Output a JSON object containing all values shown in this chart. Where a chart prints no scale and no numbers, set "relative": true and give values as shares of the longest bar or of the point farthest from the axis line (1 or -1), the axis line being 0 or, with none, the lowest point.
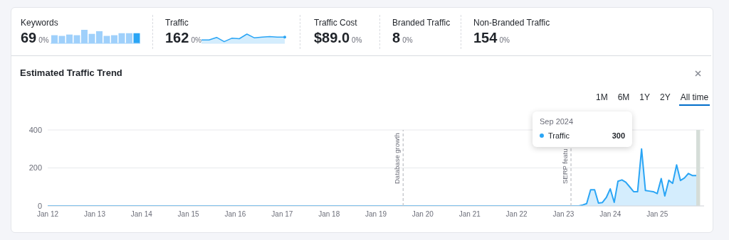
{
  "chart_data": [
    {
      "type": "other",
      "annotations": [
        "Keywords",
        "69",
        "0%",
        "Traffic",
        "162",
        "0%",
        "Traffic Cost",
        "$89.0",
        "0%",
        "Branded Traffic",
        "8",
        "0%",
        "Non-Branded Traffic",
        "154",
        "0%"
      ]
    },
    {
      "type": "bar",
      "relative": true,
      "categories": [
        null,
        null,
        null,
        null,
        null,
        null,
        null,
        null,
        null,
        null,
        null,
        null
      ],
      "values": [
        0.6,
        0.55,
        0.65,
        0.6,
        1.0,
        0.7,
        0.9,
        0.55,
        0.6,
        0.75,
        0.75,
        0.75
      ],
      "colors": [
        "#9fd0fb",
        "#9fd0fb",
        "#9fd0fb",
        "#9fd0fb",
        "#9fd0fb",
        "#9fd0fb",
        "#9fd0fb",
        "#9fd0fb",
        "#9fd0fb",
        "#9fd0fb",
        "#9fd0fb",
        "#2aa5f5"
      ]
    },
    {
      "type": "area",
      "relative": true,
      "categories": [
        null,
        null,
        null,
        null,
        null,
        null,
        null,
        null,
        null,
        null,
        null,
        null
      ],
      "values": [
        0.36,
        0.36,
        0.64,
        0.18,
        0.55,
        0.5,
        1,
        0.59,
        0.68,
        0.73,
        0.68,
        0.68
      ],
      "color": "#2aa5f5"
    },
    {
      "type": "area",
      "title": "Estimated Traffic Trend",
      "x": [
        "2012-01",
        "2023-05",
        "2023-06",
        "2023-07",
        "2023-08",
        "2023-09",
        "2023-10",
        "2023-11",
        "2023-12",
        "2024-01",
        "2024-02",
        "2024-03",
        "2024-04",
        "2024-05",
        "2024-06",
        "2024-07",
        "2024-08",
        "2024-09",
        "2024-10",
        "2024-11",
        "2024-12",
        "2025-01",
        "2025-02",
        "2025-03",
        "2025-04",
        "2025-05",
        "2025-06",
        "2025-07",
        "2025-08",
        "2025-09",
        "2025-10",
        "2025-11"
      ],
      "series": [
        {
          "name": "Traffic",
          "color": "#2aa5f5",
          "values": [
            0,
            0,
            5,
            12,
            85,
            85,
            15,
            18,
            44,
            90,
            19,
            130,
            137,
            125,
            100,
            75,
            75,
            300,
            81,
            78,
            75,
            65,
            144,
            52,
            135,
            119,
            216,
            134,
            147,
            171,
            160,
            160
          ]
        }
      ],
      "xlim": [
        "2012-01",
        "2026-01"
      ],
      "xticks": [
        {
          "value": "2012-01",
          "label": "Jan 12"
        },
        {
          "value": "2013-01",
          "label": "Jan 13"
        },
        {
          "value": "2014-01",
          "label": "Jan 14"
        },
        {
          "value": "2015-01",
          "label": "Jan 15"
        },
        {
          "value": "2016-01",
          "label": "Jan 16"
        },
        {
          "value": "2017-01",
          "label": "Jan 17"
        },
        {
          "value": "2018-01",
          "label": "Jan 18"
        },
        {
          "value": "2019-01",
          "label": "Jan 19"
        },
        {
          "value": "2020-01",
          "label": "Jan 20"
        },
        {
          "value": "2021-01",
          "label": "Jan 21"
        },
        {
          "value": "2022-01",
          "label": "Jan 22"
        },
        {
          "value": "2023-01",
          "label": "Jan 23"
        },
        {
          "value": "2024-01",
          "label": "Jan 24"
        },
        {
          "value": "2025-01",
          "label": "Jan 25"
        }
      ],
      "ylim": [
        0,
        400
      ],
      "yticks": [
        0,
        200,
        400
      ],
      "grid": "y",
      "marker": "none",
      "ref_lines": [
        {
          "axis": "x",
          "value": "2019-08",
          "label": "Database growth",
          "color": "#b0b3b9",
          "line_style": "dashed"
        },
        {
          "axis": "x",
          "value": "2023-03",
          "label": "SERP featu",
          "color": "#b0b3b9",
          "line_style": "dashed"
        }
      ],
      "bands": [
        {
          "axis": "x",
          "from": "2025-11",
          "to": "2025-12",
          "color": "#d5ddd8"
        }
      ],
      "annotations": [
        "1M",
        "6M",
        "1Y",
        "2Y",
        "All time",
        "Sep 2024",
        "300"
      ]
    }
  ]
}
